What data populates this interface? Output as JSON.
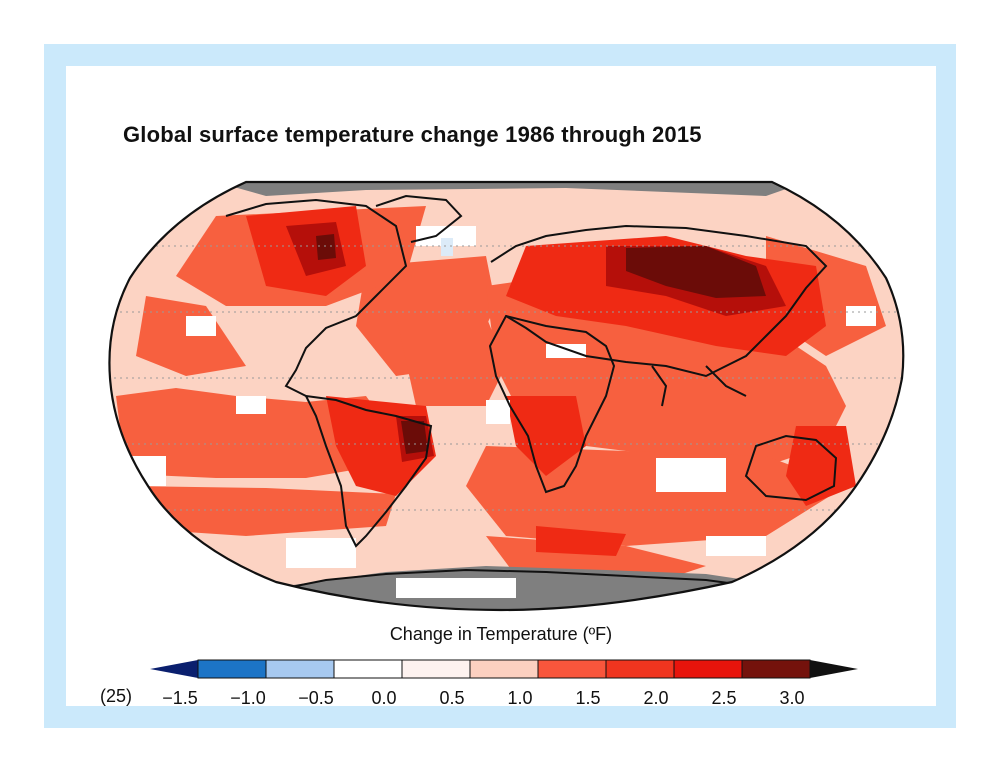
{
  "title": "Global surface temperature change 1986 through 2015",
  "source_label": "(25)",
  "colorbar": {
    "label": "Change in Temperature (ºF)",
    "ticks": [
      "−1.5",
      "−1.0",
      "−0.5",
      "0.0",
      "0.5",
      "1.0",
      "1.5",
      "2.0",
      "2.5",
      "3.0"
    ],
    "low_extend_color": "#0a1f6e",
    "high_extend_color": "#111111",
    "colors": [
      "#1c74c6",
      "#a7c9f0",
      "#ffffff",
      "#fdf2ef",
      "#fcd0c0",
      "#f8563c",
      "#f0351f",
      "#e8140c",
      "#74120c"
    ]
  },
  "map_colors": {
    "ocean_base": "#fcd3c3",
    "warm": "#f7603f",
    "hot": "#ef2a14",
    "very_hot": "#b50f0a",
    "extreme": "#6b0c08",
    "neutral": "#ffffff",
    "slight_cool": "#dcebf8",
    "no_data": "#7f7f7f",
    "coastline": "#111111",
    "frame_bg": "#cbe9fb"
  },
  "chart_data": {
    "type": "heatmap",
    "title": "Global surface temperature change 1986 through 2015",
    "colorbar_label": "Change in Temperature (ºF)",
    "colorbar_range": [
      -1.5,
      3.0
    ],
    "colorbar_step": 0.5
  }
}
